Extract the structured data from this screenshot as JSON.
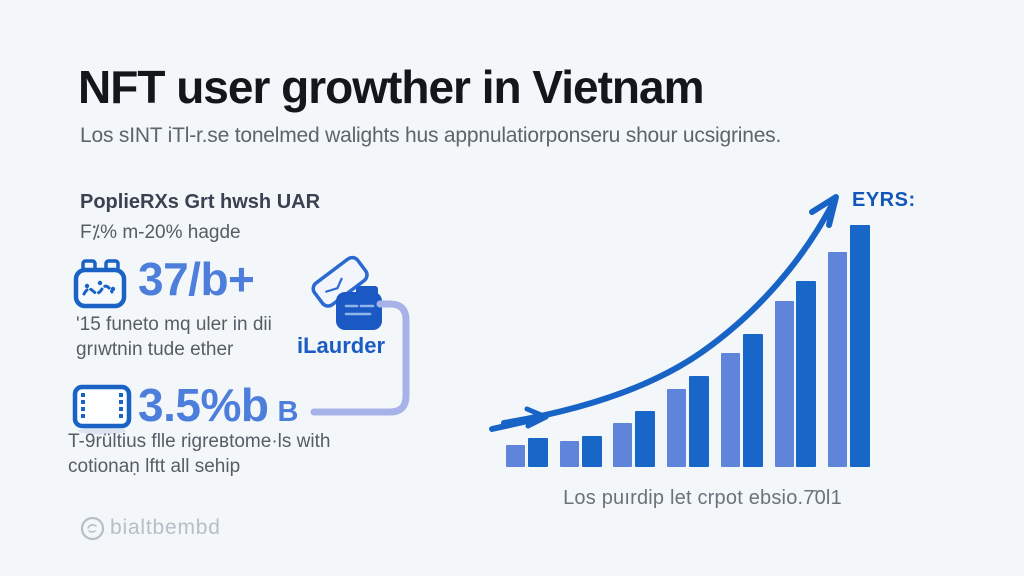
{
  "page": {
    "background": "#f3f7f9"
  },
  "header": {
    "title": "NFT user growther in Vietnam",
    "subtitle": "Los sINT iTl-r.se tonelmed walights hus appnulatiorponseru shour ucsigrines."
  },
  "stats": {
    "heading": "PoplieRXs Grt hwsh UAR",
    "subheading": "F⁒% m-20% hagde",
    "items": [
      {
        "icon": "calendar-chart-icon",
        "value": "37/b+",
        "desc_line1": "'15 funeto mq uler in dii",
        "desc_line2": "grıwtnin tude ether"
      },
      {
        "icon": "film-frame-icon",
        "value": "3.5%b",
        "suffix": "B",
        "desc_line1": "T-9rültius flle rigreʙtome·ls with",
        "desc_line2": "cotionaṇ lftt all sehip"
      }
    ],
    "wallet_label": "iLaurder"
  },
  "chart_data": {
    "type": "bar",
    "title": "",
    "xlabel": "",
    "ylabel": "",
    "axes": "none (pictorial infographic, no ticks or gridlines)",
    "x": [
      1,
      2,
      3,
      4,
      5,
      6,
      7
    ],
    "series": [
      {
        "name": "light",
        "color": "#5e85da",
        "values": [
          22,
          26,
          44,
          78,
          114,
          166,
          215
        ]
      },
      {
        "name": "dark",
        "color": "#1866c8",
        "values": [
          29,
          31,
          56,
          91,
          133,
          186,
          242
        ]
      }
    ],
    "unit": "relative height (px)",
    "trend": "exponential rising curve with arrowhead, small right arrow at base",
    "annotation": "EYRS:",
    "caption": "Los puırdip let crpot ebsio.7̄0l1"
  },
  "footer": {
    "brand": "bialtbembd"
  },
  "colors": {
    "accent_dark_blue": "#1763c6",
    "accent_mid_blue": "#4d7edb",
    "bar_light": "#5e85da",
    "bar_dark": "#1866c8",
    "connector": "#a7b3e8",
    "text_dark": "#14161b",
    "text_gray": "#565d67",
    "muted_gray": "#b7bec8"
  }
}
